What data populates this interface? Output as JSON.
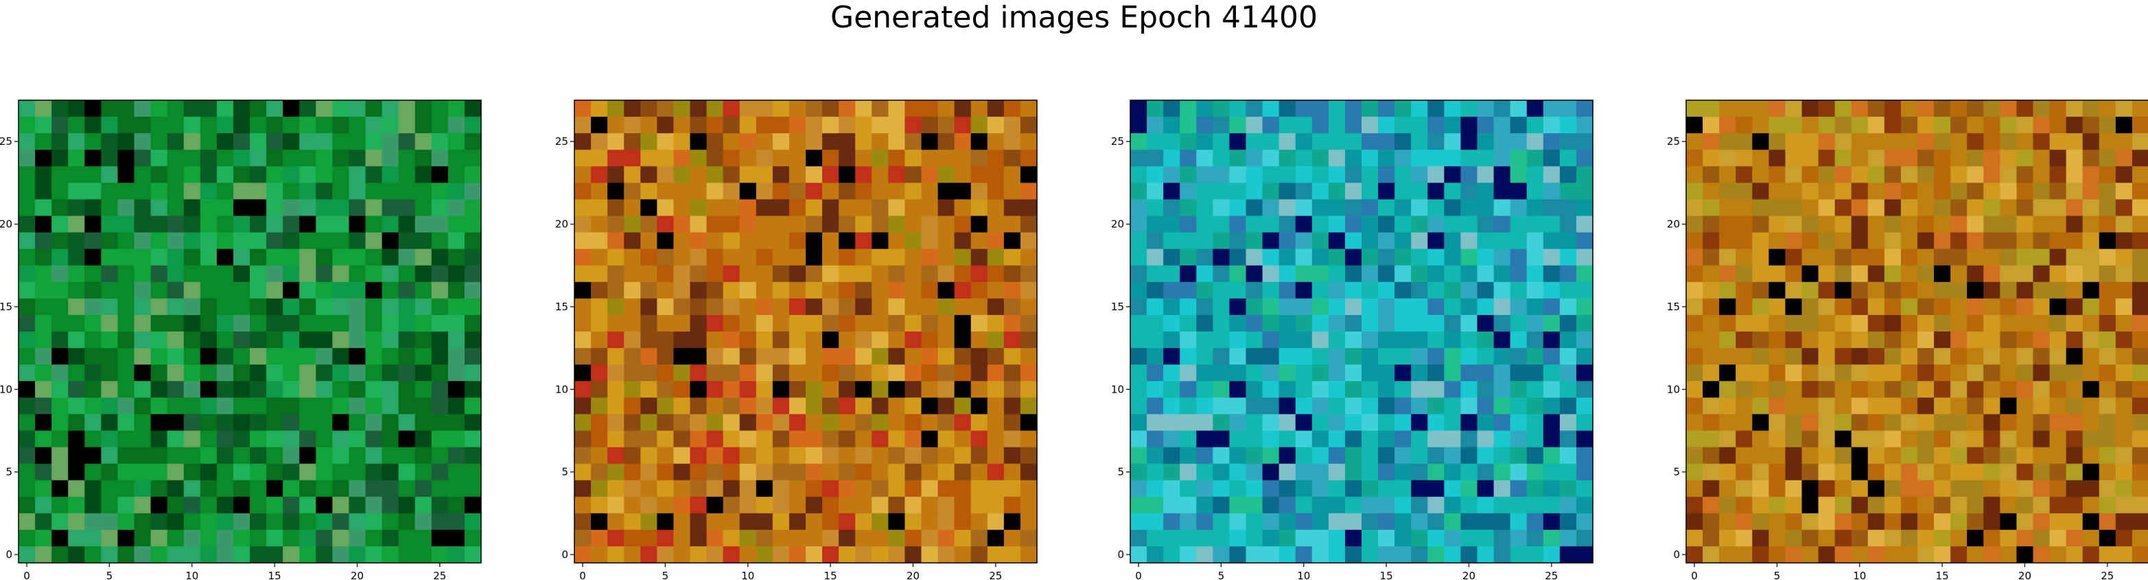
{
  "figure": {
    "title": "Generated images Epoch 41400"
  },
  "chart_data": [
    {
      "type": "heatmap",
      "name": "generated-image-1",
      "grid": [
        28,
        28
      ],
      "palette": [
        "#0b8a2a",
        "#11a43a",
        "#06701f",
        "#1fb25a",
        "#0a5c25",
        "#2aa86a",
        "#004a18",
        "#0e9a4a",
        "#3c9a6a",
        "#000000",
        "#1a5f3a",
        "#6aa860"
      ],
      "xticks": [
        0,
        5,
        10,
        15,
        20,
        25
      ],
      "yticks": [
        0,
        5,
        10,
        15,
        20,
        25
      ],
      "xlim": [
        -0.5,
        27.5
      ],
      "ylim": [
        27.5,
        -0.5
      ]
    },
    {
      "type": "heatmap",
      "name": "generated-image-2",
      "grid": [
        28,
        28
      ],
      "palette": [
        "#c07a10",
        "#d49a1a",
        "#b85a0a",
        "#a86a1a",
        "#c88a2a",
        "#8a4a10",
        "#d46a1a",
        "#9a8a10",
        "#6a2a10",
        "#e0b040",
        "#000000",
        "#c0301a"
      ],
      "xticks": [
        0,
        5,
        10,
        15,
        20,
        25
      ],
      "yticks": [
        0,
        5,
        10,
        15,
        20,
        25
      ],
      "xlim": [
        -0.5,
        27.5
      ],
      "ylim": [
        27.5,
        -0.5
      ]
    },
    {
      "type": "heatmap",
      "name": "generated-image-3",
      "grid": [
        28,
        28
      ],
      "palette": [
        "#10b8b0",
        "#1ac8d0",
        "#0a98a0",
        "#30a8c0",
        "#10a890",
        "#2a7ab0",
        "#40d0d8",
        "#000a5a",
        "#1a8aa0",
        "#80c0c8",
        "#0a6a8a",
        "#20c090"
      ],
      "xticks": [
        0,
        5,
        10,
        15,
        20,
        25
      ],
      "yticks": [
        0,
        5,
        10,
        15,
        20,
        25
      ],
      "xlim": [
        -0.5,
        27.5
      ],
      "ylim": [
        27.5,
        -0.5
      ]
    },
    {
      "type": "heatmap",
      "name": "generated-image-4",
      "grid": [
        28,
        28
      ],
      "palette": [
        "#c08010",
        "#d09a20",
        "#b86a0a",
        "#a8821a",
        "#c8a030",
        "#9a5a10",
        "#d07020",
        "#8a3a0a",
        "#b0a020",
        "#6a2a0a",
        "#e0b040",
        "#000000"
      ],
      "xticks": [
        0,
        5,
        10,
        15,
        20,
        25
      ],
      "yticks": [
        0,
        5,
        10,
        15,
        20,
        25
      ],
      "xlim": [
        -0.5,
        27.5
      ],
      "ylim": [
        27.5,
        -0.5
      ]
    }
  ]
}
